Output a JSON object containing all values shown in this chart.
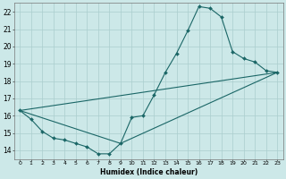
{
  "title": "",
  "xlabel": "Humidex (Indice chaleur)",
  "xlim": [
    -0.5,
    23.5
  ],
  "ylim": [
    13.5,
    22.5
  ],
  "xticks": [
    0,
    1,
    2,
    3,
    4,
    5,
    6,
    7,
    8,
    9,
    10,
    11,
    12,
    13,
    14,
    15,
    16,
    17,
    18,
    19,
    20,
    21,
    22,
    23
  ],
  "yticks": [
    14,
    15,
    16,
    17,
    18,
    19,
    20,
    21,
    22
  ],
  "bg_color": "#cce8e8",
  "grid_color": "#aacece",
  "line_color": "#1a6666",
  "line1_x": [
    0,
    1,
    2,
    3,
    4,
    5,
    6,
    7,
    8,
    9,
    10,
    11,
    12,
    13,
    14,
    15,
    16,
    17,
    18,
    19,
    20,
    21,
    22,
    23
  ],
  "line1_y": [
    16.3,
    15.8,
    15.1,
    14.7,
    14.6,
    14.4,
    14.2,
    13.8,
    13.8,
    14.4,
    15.9,
    16.0,
    17.2,
    18.5,
    19.6,
    20.9,
    22.3,
    22.2,
    21.7,
    19.7,
    19.3,
    19.1,
    18.6,
    18.5
  ],
  "line2_x": [
    0,
    23
  ],
  "line2_y": [
    16.3,
    18.5
  ],
  "line3_x": [
    0,
    9,
    23
  ],
  "line3_y": [
    16.3,
    14.4,
    18.5
  ]
}
